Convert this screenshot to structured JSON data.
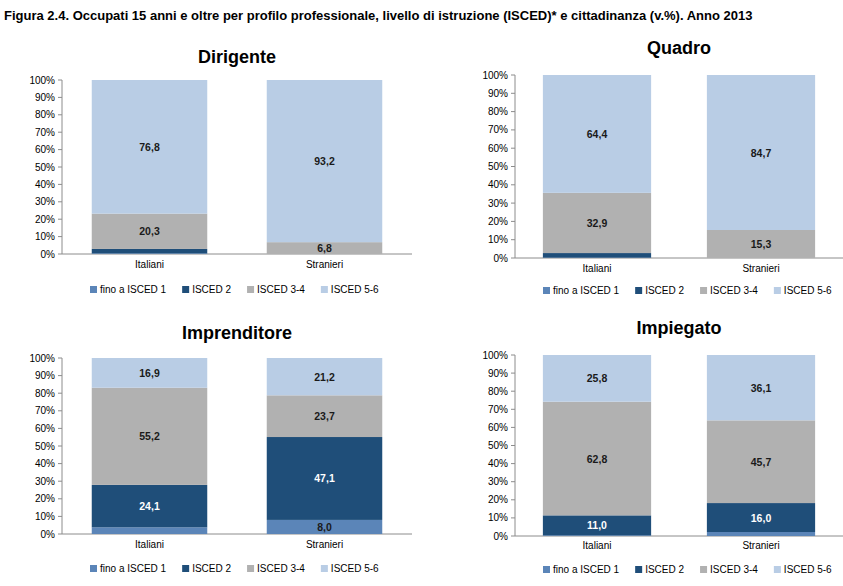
{
  "title": "Figura 2.4. Occupati 15 anni e oltre per profilo professionale, livello di istruzione (ISCED)* e cittadinanza (v.%). Anno 2013",
  "chart_data": [
    {
      "type": "bar",
      "title": "Dirigente",
      "stacked": true,
      "data_labels": true,
      "legend": "bottom",
      "grid": false,
      "categories": [
        "Italiani",
        "Stranieri"
      ],
      "ylim": [
        0,
        100
      ],
      "yticks": [
        {
          "value": 0,
          "label": "0%"
        },
        {
          "value": 10,
          "label": "10%"
        },
        {
          "value": 20,
          "label": "20%"
        },
        {
          "value": 30,
          "label": "30%"
        },
        {
          "value": 40,
          "label": "40%"
        },
        {
          "value": 50,
          "label": "50%"
        },
        {
          "value": 60,
          "label": "60%"
        },
        {
          "value": 70,
          "label": "70%"
        },
        {
          "value": 80,
          "label": "80%"
        },
        {
          "value": 90,
          "label": "90%"
        },
        {
          "value": 100,
          "label": "100%"
        }
      ],
      "series": [
        {
          "name": "fino a ISCED 1",
          "color": "#5b85b8",
          "values": [
            0.4,
            0
          ],
          "value_labels": [
            null,
            null
          ]
        },
        {
          "name": "ISCED 2",
          "color": "#1f4e79",
          "values": [
            2.5,
            0
          ],
          "value_labels": [
            null,
            null
          ]
        },
        {
          "name": "ISCED 3-4",
          "color": "#b1b1b1",
          "values": [
            20.3,
            6.8
          ],
          "value_labels": [
            "20,3",
            "6,8"
          ]
        },
        {
          "name": "ISCED 5-6",
          "color": "#b9cde5",
          "values": [
            76.8,
            93.2
          ],
          "value_labels": [
            "76,8",
            "93,2"
          ]
        }
      ]
    },
    {
      "type": "bar",
      "title": "Quadro",
      "stacked": true,
      "data_labels": true,
      "legend": "bottom",
      "grid": false,
      "categories": [
        "Italiani",
        "Stranieri"
      ],
      "ylim": [
        0,
        100
      ],
      "yticks": [
        {
          "value": 0,
          "label": "0%"
        },
        {
          "value": 10,
          "label": "10%"
        },
        {
          "value": 20,
          "label": "20%"
        },
        {
          "value": 30,
          "label": "30%"
        },
        {
          "value": 40,
          "label": "40%"
        },
        {
          "value": 50,
          "label": "50%"
        },
        {
          "value": 60,
          "label": "60%"
        },
        {
          "value": 70,
          "label": "70%"
        },
        {
          "value": 80,
          "label": "80%"
        },
        {
          "value": 90,
          "label": "90%"
        },
        {
          "value": 100,
          "label": "100%"
        }
      ],
      "series": [
        {
          "name": "fino a ISCED 1",
          "color": "#5b85b8",
          "values": [
            0.2,
            0
          ],
          "value_labels": [
            null,
            null
          ]
        },
        {
          "name": "ISCED 2",
          "color": "#1f4e79",
          "values": [
            2.5,
            0
          ],
          "value_labels": [
            null,
            null
          ]
        },
        {
          "name": "ISCED 3-4",
          "color": "#b1b1b1",
          "values": [
            32.9,
            15.3
          ],
          "value_labels": [
            "32,9",
            "15,3"
          ]
        },
        {
          "name": "ISCED 5-6",
          "color": "#b9cde5",
          "values": [
            64.4,
            84.7
          ],
          "value_labels": [
            "64,4",
            "84,7"
          ]
        }
      ]
    },
    {
      "type": "bar",
      "title": "Imprenditore",
      "stacked": true,
      "data_labels": true,
      "legend": "bottom",
      "grid": false,
      "categories": [
        "Italiani",
        "Stranieri"
      ],
      "ylim": [
        0,
        100
      ],
      "yticks": [
        {
          "value": 0,
          "label": "0%"
        },
        {
          "value": 10,
          "label": "10%"
        },
        {
          "value": 20,
          "label": "20%"
        },
        {
          "value": 30,
          "label": "30%"
        },
        {
          "value": 40,
          "label": "40%"
        },
        {
          "value": 50,
          "label": "50%"
        },
        {
          "value": 60,
          "label": "60%"
        },
        {
          "value": 70,
          "label": "70%"
        },
        {
          "value": 80,
          "label": "80%"
        },
        {
          "value": 90,
          "label": "90%"
        },
        {
          "value": 100,
          "label": "100%"
        }
      ],
      "series": [
        {
          "name": "fino a ISCED 1",
          "color": "#5b85b8",
          "values": [
            3.8,
            8.0
          ],
          "value_labels": [
            null,
            "8,0"
          ]
        },
        {
          "name": "ISCED 2",
          "color": "#1f4e79",
          "values": [
            24.1,
            47.1
          ],
          "value_labels": [
            "24,1",
            "47,1"
          ]
        },
        {
          "name": "ISCED 3-4",
          "color": "#b1b1b1",
          "values": [
            55.2,
            23.7
          ],
          "value_labels": [
            "55,2",
            "23,7"
          ]
        },
        {
          "name": "ISCED 5-6",
          "color": "#b9cde5",
          "values": [
            16.9,
            21.2
          ],
          "value_labels": [
            "16,9",
            "21,2"
          ]
        }
      ]
    },
    {
      "type": "bar",
      "title": "Impiegato",
      "stacked": true,
      "data_labels": true,
      "legend": "bottom",
      "grid": false,
      "categories": [
        "Italiani",
        "Stranieri"
      ],
      "ylim": [
        0,
        100
      ],
      "yticks": [
        {
          "value": 0,
          "label": "0%"
        },
        {
          "value": 10,
          "label": "10%"
        },
        {
          "value": 20,
          "label": "20%"
        },
        {
          "value": 30,
          "label": "30%"
        },
        {
          "value": 40,
          "label": "40%"
        },
        {
          "value": 50,
          "label": "50%"
        },
        {
          "value": 60,
          "label": "60%"
        },
        {
          "value": 70,
          "label": "70%"
        },
        {
          "value": 80,
          "label": "80%"
        },
        {
          "value": 90,
          "label": "90%"
        },
        {
          "value": 100,
          "label": "100%"
        }
      ],
      "series": [
        {
          "name": "fino a ISCED 1",
          "color": "#5b85b8",
          "values": [
            0.4,
            2.2
          ],
          "value_labels": [
            null,
            null
          ]
        },
        {
          "name": "ISCED 2",
          "color": "#1f4e79",
          "values": [
            11.0,
            16.0
          ],
          "value_labels": [
            "11,0",
            "16,0"
          ]
        },
        {
          "name": "ISCED 3-4",
          "color": "#b1b1b1",
          "values": [
            62.8,
            45.7
          ],
          "value_labels": [
            "62,8",
            "45,7"
          ]
        },
        {
          "name": "ISCED 5-6",
          "color": "#b9cde5",
          "values": [
            25.8,
            36.1
          ],
          "value_labels": [
            "25,8",
            "36,1"
          ]
        }
      ]
    }
  ]
}
